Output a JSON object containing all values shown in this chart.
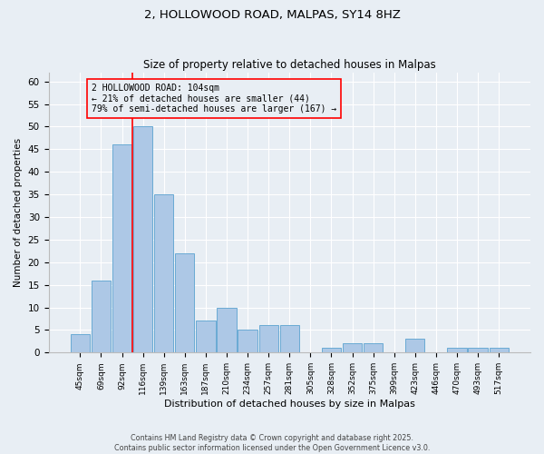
{
  "title1": "2, HOLLOWOOD ROAD, MALPAS, SY14 8HZ",
  "title2": "Size of property relative to detached houses in Malpas",
  "xlabel": "Distribution of detached houses by size in Malpas",
  "ylabel": "Number of detached properties",
  "categories": [
    "45sqm",
    "69sqm",
    "92sqm",
    "116sqm",
    "139sqm",
    "163sqm",
    "187sqm",
    "210sqm",
    "234sqm",
    "257sqm",
    "281sqm",
    "305sqm",
    "328sqm",
    "352sqm",
    "375sqm",
    "399sqm",
    "423sqm",
    "446sqm",
    "470sqm",
    "493sqm",
    "517sqm"
  ],
  "values": [
    4,
    16,
    46,
    50,
    35,
    22,
    7,
    10,
    5,
    6,
    6,
    0,
    1,
    2,
    2,
    0,
    3,
    0,
    1,
    1,
    1
  ],
  "bar_color": "#adc8e6",
  "bar_edge_color": "#6aaad4",
  "red_line_index": 3,
  "annotation_line1": "2 HOLLOWOOD ROAD: 104sqm",
  "annotation_line2": "← 21% of detached houses are smaller (44)",
  "annotation_line3": "79% of semi-detached houses are larger (167) →",
  "ylim": [
    0,
    62
  ],
  "yticks": [
    0,
    5,
    10,
    15,
    20,
    25,
    30,
    35,
    40,
    45,
    50,
    55,
    60
  ],
  "footer1": "Contains HM Land Registry data © Crown copyright and database right 2025.",
  "footer2": "Contains public sector information licensed under the Open Government Licence v3.0.",
  "bg_color": "#e8eef4",
  "grid_color": "#ffffff"
}
